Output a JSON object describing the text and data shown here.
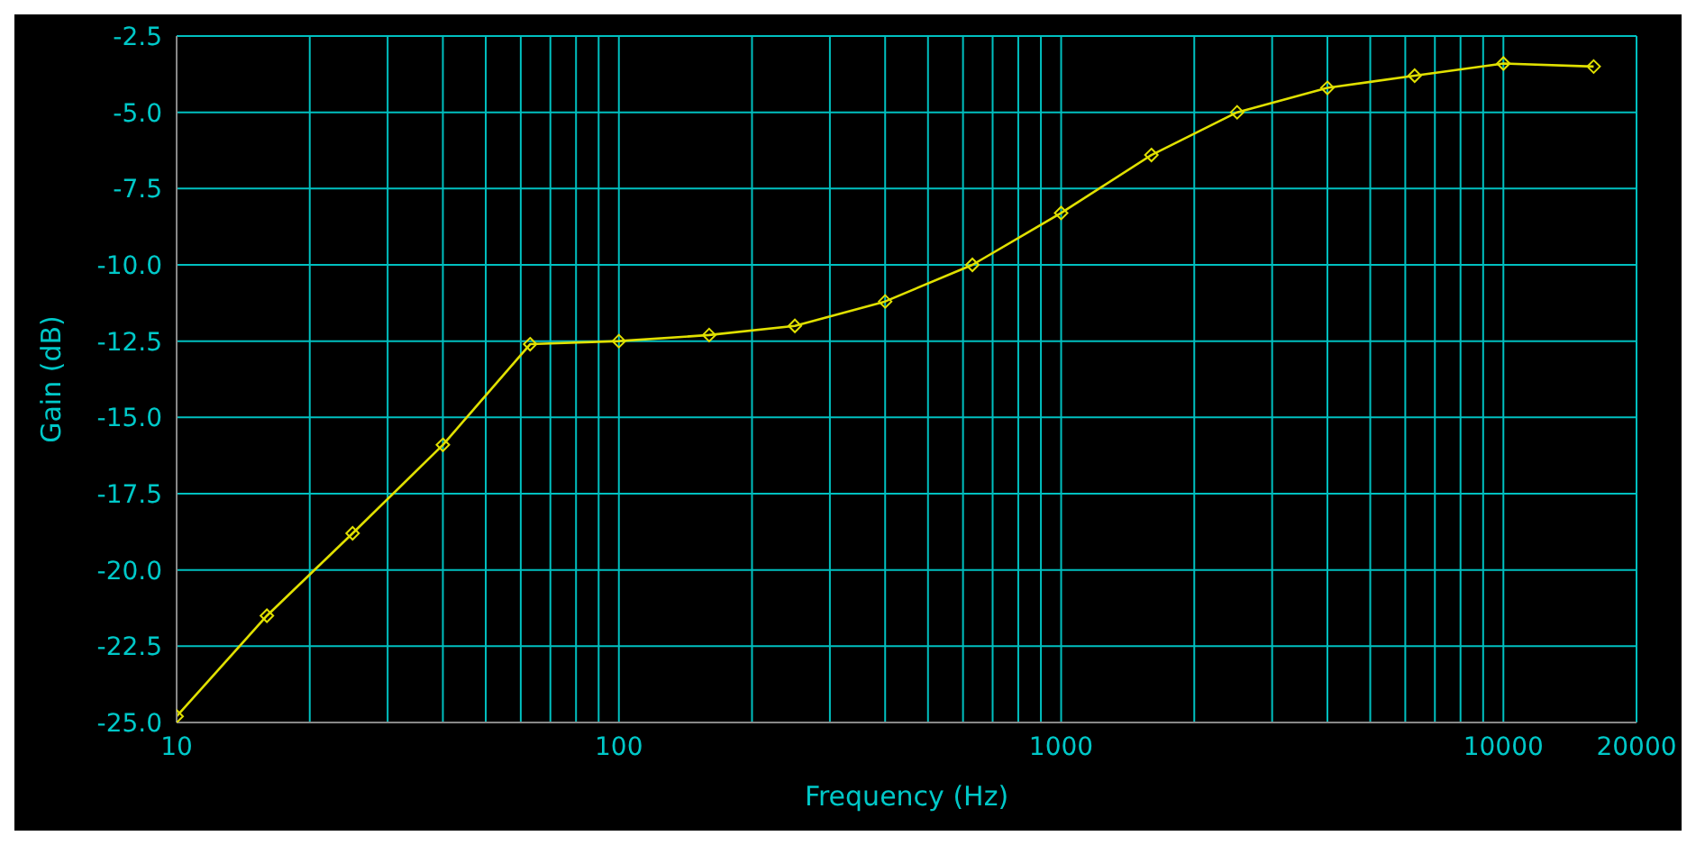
{
  "chart_data": {
    "type": "line",
    "xlabel": "Frequency (Hz)",
    "ylabel": "Gain (dB)",
    "x": [
      10,
      16,
      25,
      40,
      63,
      100,
      160,
      250,
      400,
      630,
      1000,
      1600,
      2500,
      4000,
      6300,
      10000,
      16000
    ],
    "series": [
      {
        "color": "#e0e000",
        "values": [
          -24.8,
          -21.5,
          -18.8,
          -15.9,
          -12.6,
          -12.5,
          -12.3,
          -12.0,
          -11.2,
          -10.0,
          -8.3,
          -6.4,
          -5.0,
          -4.2,
          -3.8,
          -3.4,
          -3.5
        ]
      }
    ],
    "log": "x",
    "xlim": [
      10,
      20000
    ],
    "xticks": [
      10,
      {
        "value": 20,
        "label": null
      },
      {
        "value": 30,
        "label": null
      },
      {
        "value": 40,
        "label": null
      },
      {
        "value": 50,
        "label": null
      },
      {
        "value": 60,
        "label": null
      },
      {
        "value": 70,
        "label": null
      },
      {
        "value": 80,
        "label": null
      },
      {
        "value": 90,
        "label": null
      },
      100,
      {
        "value": 200,
        "label": null
      },
      {
        "value": 300,
        "label": null
      },
      {
        "value": 400,
        "label": null
      },
      {
        "value": 500,
        "label": null
      },
      {
        "value": 600,
        "label": null
      },
      {
        "value": 700,
        "label": null
      },
      {
        "value": 800,
        "label": null
      },
      {
        "value": 900,
        "label": null
      },
      1000,
      {
        "value": 2000,
        "label": null
      },
      {
        "value": 3000,
        "label": null
      },
      {
        "value": 4000,
        "label": null
      },
      {
        "value": 5000,
        "label": null
      },
      {
        "value": 6000,
        "label": null
      },
      {
        "value": 7000,
        "label": null
      },
      {
        "value": 8000,
        "label": null
      },
      {
        "value": 9000,
        "label": null
      },
      10000,
      20000
    ],
    "ylim": [
      -25,
      -2.5
    ],
    "yticks": [
      {
        "value": -25,
        "label": "-25.0"
      },
      {
        "value": -22.5,
        "label": "-22.5"
      },
      {
        "value": -20,
        "label": "-20.0"
      },
      {
        "value": -17.5,
        "label": "-17.5"
      },
      {
        "value": -15,
        "label": "-15.0"
      },
      {
        "value": -12.5,
        "label": "-12.5"
      },
      {
        "value": -10,
        "label": "-10.0"
      },
      {
        "value": -7.5,
        "label": "-7.5"
      },
      {
        "value": -5,
        "label": "-5.0"
      },
      {
        "value": -2.5,
        "label": "-2.5"
      }
    ],
    "grid": true,
    "marker": "diamond",
    "line_style": "solid"
  }
}
